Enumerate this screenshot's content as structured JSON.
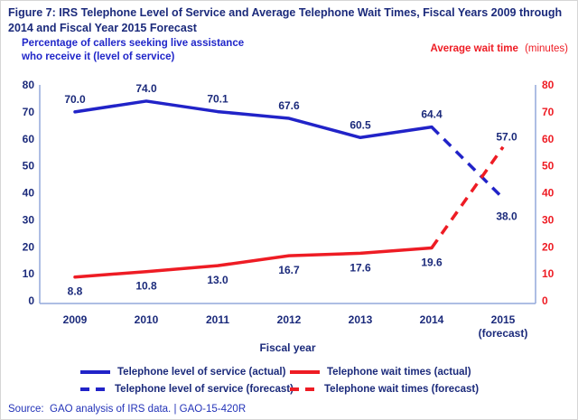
{
  "figure_title_lines": [
    "Figure 7: IRS Telephone Level of Service and Average Telephone Wait Times, Fiscal Years 2009 through",
    "2014 and Fiscal Year 2015 Forecast"
  ],
  "source_line": "Source:  GAO analysis of IRS data. | GAO-15-420R",
  "colors": {
    "navy_text": "#1b2a7b",
    "blue_line": "#2123c8",
    "blue_caption": "#2026c9",
    "red_line": "#ee1c24",
    "axis_line": "#93a9dc",
    "source_blue": "#2333b8"
  },
  "chart_data": {
    "type": "line",
    "title": "Figure 7: IRS Telephone Level of Service and Average Telephone Wait Times, Fiscal Years 2009 through 2014 and Fiscal Year 2015 Forecast",
    "x_label": "Fiscal year",
    "x_categories": [
      "2009",
      "2010",
      "2011",
      "2012",
      "2013",
      "2014",
      "2015\n(forecast)"
    ],
    "grid": false,
    "legend_position": "bottom",
    "axes": {
      "left": {
        "label": "Percentage of callers seeking live assistance who receive it (level of service)",
        "min": 0,
        "max": 80,
        "tick_step": 10,
        "tick_labels": [
          "0",
          "10",
          "20",
          "30",
          "40",
          "50",
          "60",
          "70",
          "80"
        ],
        "color": "#1b2a7b"
      },
      "right": {
        "label_bold": "Average wait time",
        "label_regular": "(minutes)",
        "min": 0,
        "max": 80,
        "tick_step": 10,
        "tick_labels": [
          "0",
          "10",
          "20",
          "30",
          "40",
          "50",
          "60",
          "70",
          "80"
        ],
        "color": "#ee1c24"
      }
    },
    "series": [
      {
        "name": "Telephone level of service (actual)",
        "axis": "left",
        "style": "solid",
        "color": "#2123c8",
        "start_index": 0,
        "values": [
          70.0,
          74.0,
          70.1,
          67.6,
          60.5,
          64.4
        ],
        "labels": [
          "70.0",
          "74.0",
          "70.1",
          "67.6",
          "60.5",
          "64.4"
        ]
      },
      {
        "name": "Telephone level of service (forecast)",
        "axis": "left",
        "style": "dashed",
        "color": "#2123c8",
        "start_index": 5,
        "values": [
          64.4,
          38.0
        ],
        "labels": [
          null,
          "38.0"
        ]
      },
      {
        "name": "Telephone wait times (actual)",
        "axis": "right",
        "style": "solid",
        "color": "#ee1c24",
        "start_index": 0,
        "values": [
          8.8,
          10.8,
          13.0,
          16.7,
          17.6,
          19.6
        ],
        "labels": [
          "8.8",
          "10.8",
          "13.0",
          "16.7",
          "17.6",
          "19.6"
        ]
      },
      {
        "name": "Telephone wait times (forecast)",
        "axis": "right",
        "style": "dashed",
        "color": "#ee1c24",
        "start_index": 5,
        "values": [
          19.6,
          57.0
        ],
        "labels": [
          null,
          "57.0"
        ]
      }
    ]
  },
  "legend": {
    "rows": [
      [
        {
          "label": "Telephone level of service (actual)",
          "color": "#2123c8",
          "style": "solid"
        },
        {
          "label": "Telephone wait times (actual)",
          "color": "#ee1c24",
          "style": "solid"
        }
      ],
      [
        {
          "label": "Telephone level of service (forecast)",
          "color": "#2123c8",
          "style": "dashed"
        },
        {
          "label": "Telephone wait times (forecast)",
          "color": "#ee1c24",
          "style": "dashed"
        }
      ]
    ]
  }
}
